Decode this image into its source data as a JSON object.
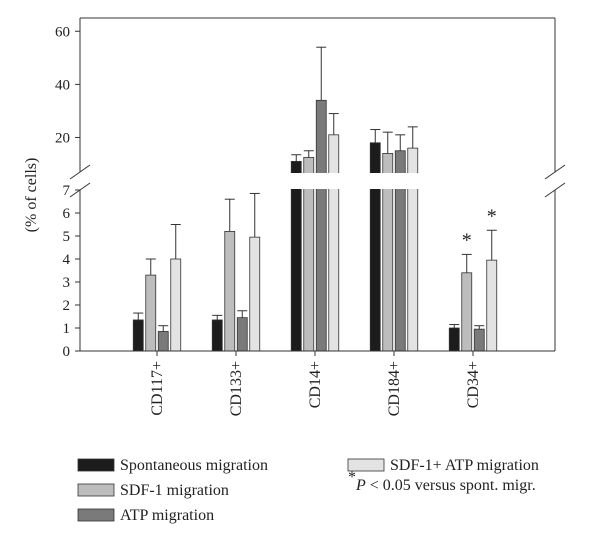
{
  "chart_data": {
    "type": "bar",
    "ylabel": "(% of cells)",
    "categories": [
      "CD117+",
      "CD133+",
      "CD14+",
      "CD184+",
      "CD34+"
    ],
    "axis_break": {
      "lower_range": [
        0,
        7
      ],
      "upper_range": [
        7,
        65
      ]
    },
    "lower_ticks": [
      "0",
      "1",
      "2",
      "3",
      "4",
      "5",
      "6",
      "7"
    ],
    "upper_ticks": [
      "20",
      "40",
      "60"
    ],
    "series": [
      {
        "name": "Spontaneous migration",
        "color": "#1c1c1c",
        "values": [
          1.35,
          1.35,
          11,
          18,
          1.0
        ],
        "errors": [
          0.3,
          0.2,
          2.5,
          5,
          0.15
        ]
      },
      {
        "name": "SDF-1 migration",
        "color": "#bdbdbd",
        "values": [
          3.3,
          5.2,
          12.5,
          14,
          3.4
        ],
        "errors": [
          0.7,
          1.4,
          2.5,
          8,
          0.8
        ]
      },
      {
        "name": "ATP migration",
        "color": "#7a7a7a",
        "values": [
          0.85,
          1.45,
          34,
          15,
          0.95
        ],
        "errors": [
          0.25,
          0.3,
          20,
          6,
          0.15
        ]
      },
      {
        "name": "SDF-1+ ATP migration",
        "color": "#e3e3e3",
        "values": [
          4.0,
          4.95,
          21,
          16,
          3.95
        ],
        "errors": [
          1.5,
          1.9,
          8,
          8,
          1.3
        ]
      }
    ],
    "significance": [
      {
        "category": "CD34+",
        "series": "SDF-1 migration",
        "mark": "*"
      },
      {
        "category": "CD34+",
        "series": "SDF-1+ ATP migration",
        "mark": "*"
      }
    ],
    "legend": {
      "placement": "bottom",
      "note_star": "*",
      "note_text": "P < 0.05 versus spont. migr."
    }
  }
}
